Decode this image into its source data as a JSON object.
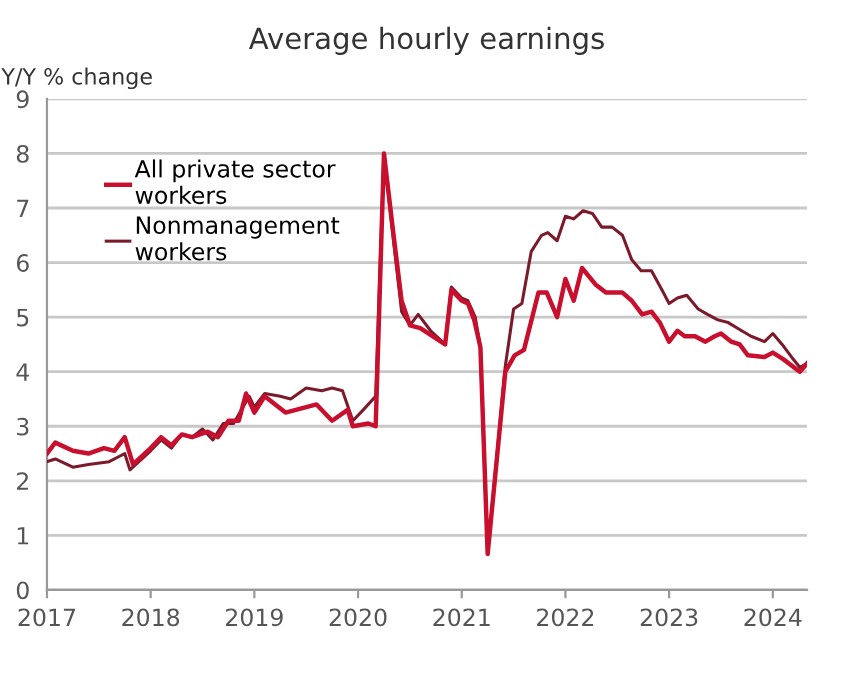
{
  "chart_data": {
    "type": "line",
    "title": "Average hourly earnings",
    "ylabel": "Y/Y % change",
    "xlim": [
      2017,
      2024.33
    ],
    "xticks": [
      2017,
      2018,
      2019,
      2020,
      2021,
      2022,
      2023,
      2024
    ],
    "ylim": [
      0,
      9
    ],
    "yticks": [
      0,
      1,
      2,
      3,
      4,
      5,
      6,
      7,
      8,
      9
    ],
    "grid": "y",
    "legend": "top left",
    "marker": "none",
    "line_style": "solid",
    "series": [
      {
        "name": "All private sector workers",
        "color": "#c8102e",
        "x": [
          2017.0,
          2017.08,
          2017.25,
          2017.4,
          2017.55,
          2017.65,
          2017.75,
          2017.83,
          2018.0,
          2018.1,
          2018.2,
          2018.3,
          2018.4,
          2018.55,
          2018.65,
          2018.75,
          2018.85,
          2018.92,
          2019.0,
          2019.1,
          2019.3,
          2019.5,
          2019.6,
          2019.75,
          2019.9,
          2019.95,
          2020.1,
          2020.17,
          2020.25,
          2020.33,
          2020.42,
          2020.5,
          2020.6,
          2020.84,
          2020.9,
          2021.0,
          2021.06,
          2021.12,
          2021.18,
          2021.25,
          2021.42,
          2021.51,
          2021.6,
          2021.74,
          2021.82,
          2021.92,
          2022.0,
          2022.08,
          2022.16,
          2022.29,
          2022.39,
          2022.55,
          2022.64,
          2022.74,
          2022.83,
          2022.91,
          2023.0,
          2023.08,
          2023.15,
          2023.25,
          2023.35,
          2023.44,
          2023.5,
          2023.6,
          2023.68,
          2023.76,
          2023.92,
          2024.0,
          2024.1,
          2024.26,
          2024.33
        ],
        "values": [
          2.5,
          2.7,
          2.55,
          2.5,
          2.6,
          2.55,
          2.8,
          2.3,
          2.6,
          2.8,
          2.65,
          2.85,
          2.8,
          2.9,
          2.8,
          3.1,
          3.1,
          3.6,
          3.25,
          3.55,
          3.25,
          3.35,
          3.4,
          3.1,
          3.3,
          3.0,
          3.05,
          3.0,
          8.0,
          6.7,
          5.3,
          4.85,
          4.8,
          4.5,
          5.5,
          5.3,
          5.25,
          4.95,
          4.45,
          0.66,
          4.0,
          4.3,
          4.4,
          5.45,
          5.45,
          5.0,
          5.7,
          5.3,
          5.9,
          5.6,
          5.45,
          5.45,
          5.3,
          5.05,
          5.1,
          4.9,
          4.55,
          4.75,
          4.65,
          4.65,
          4.55,
          4.65,
          4.7,
          4.55,
          4.5,
          4.3,
          4.27,
          4.35,
          4.23,
          4.0,
          4.15
        ]
      },
      {
        "name": "Nonmanagement workers",
        "color": "#7b1a2a",
        "x": [
          2017.0,
          2017.08,
          2017.25,
          2017.4,
          2017.6,
          2017.7,
          2017.75,
          2017.8,
          2018.0,
          2018.1,
          2018.2,
          2018.3,
          2018.4,
          2018.5,
          2018.6,
          2018.7,
          2018.8,
          2018.95,
          2019.0,
          2019.1,
          2019.25,
          2019.35,
          2019.5,
          2019.65,
          2019.75,
          2019.85,
          2019.95,
          2020.05,
          2020.17,
          2020.25,
          2020.33,
          2020.42,
          2020.5,
          2020.58,
          2020.7,
          2020.84,
          2020.9,
          2021.0,
          2021.06,
          2021.13,
          2021.18,
          2021.25,
          2021.42,
          2021.5,
          2021.58,
          2021.67,
          2021.77,
          2021.83,
          2021.92,
          2022.0,
          2022.08,
          2022.17,
          2022.26,
          2022.35,
          2022.45,
          2022.55,
          2022.64,
          2022.73,
          2022.83,
          2022.93,
          2023.0,
          2023.08,
          2023.17,
          2023.28,
          2023.37,
          2023.47,
          2023.57,
          2023.7,
          2023.79,
          2023.92,
          2024.0,
          2024.09,
          2024.18,
          2024.26,
          2024.33
        ],
        "values": [
          2.35,
          2.4,
          2.25,
          2.3,
          2.35,
          2.45,
          2.5,
          2.2,
          2.55,
          2.75,
          2.6,
          2.85,
          2.8,
          2.95,
          2.75,
          3.05,
          3.05,
          3.55,
          3.35,
          3.6,
          3.55,
          3.5,
          3.7,
          3.65,
          3.7,
          3.65,
          3.1,
          3.3,
          3.55,
          8.0,
          6.6,
          5.1,
          4.85,
          5.05,
          4.75,
          4.5,
          5.55,
          5.35,
          5.3,
          5.0,
          4.45,
          0.66,
          4.1,
          5.15,
          5.25,
          6.2,
          6.5,
          6.55,
          6.4,
          6.85,
          6.8,
          6.95,
          6.9,
          6.65,
          6.65,
          6.5,
          6.05,
          5.85,
          5.85,
          5.5,
          5.25,
          5.35,
          5.4,
          5.15,
          5.05,
          4.95,
          4.9,
          4.75,
          4.65,
          4.55,
          4.7,
          4.5,
          4.27,
          4.08,
          4.15
        ]
      }
    ]
  }
}
